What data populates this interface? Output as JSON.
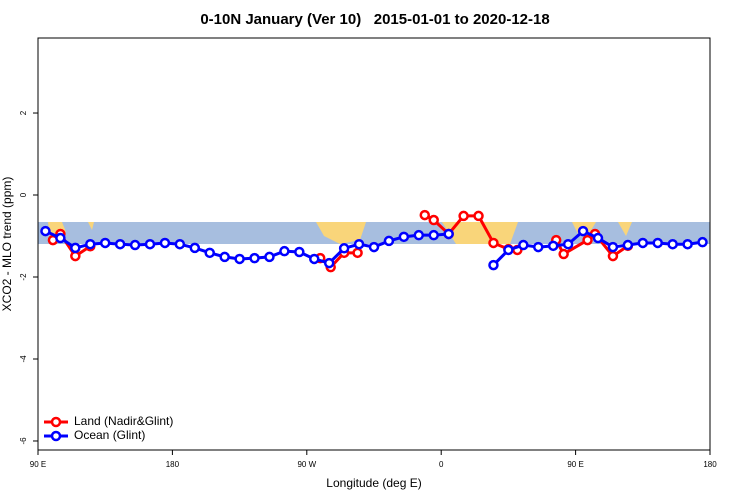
{
  "chart_data": {
    "type": "line",
    "title": "0-10N January (Ver 10)   2015-01-01 to 2020-12-18",
    "x_label": "Longitude (deg E)",
    "y_label": "XCO2 - MLO trend (ppm)",
    "xlim": [
      90,
      540
    ],
    "ylim": [
      -6.22,
      3.83
    ],
    "xticks": [
      {
        "value": 90,
        "label": "90 E"
      },
      {
        "value": 180,
        "label": "180"
      },
      {
        "value": 270,
        "label": "90 W"
      },
      {
        "value": 360,
        "label": "0"
      },
      {
        "value": 450,
        "label": "90 E"
      },
      {
        "value": 540,
        "label": "180"
      }
    ],
    "yticks": [
      2,
      0,
      -2,
      -4,
      -6
    ],
    "legend": "bottom-left",
    "series": [
      {
        "name": "Land (Nadir&Glint)",
        "color": "#ff0000",
        "x": [
          100,
          105,
          115,
          125,
          null,
          279,
          286,
          295,
          304,
          null,
          349,
          355,
          365,
          375,
          385,
          395,
          405,
          411,
          null,
          437,
          442,
          458,
          463,
          475,
          485
        ],
        "values": [
          -1.1,
          -0.95,
          -1.49,
          -1.25,
          null,
          -1.54,
          -1.76,
          -1.41,
          -1.41,
          null,
          -0.49,
          -0.61,
          -0.95,
          -0.51,
          -0.51,
          -1.17,
          -1.32,
          -1.34,
          null,
          -1.1,
          -1.44,
          -1.1,
          -0.95,
          -1.49,
          -1.24
        ]
      },
      {
        "name": "Ocean (Glint)",
        "color": "#0000ff",
        "x": [
          95,
          105,
          115,
          125,
          135,
          145,
          155,
          165,
          175,
          185,
          195,
          205,
          215,
          225,
          235,
          245,
          255,
          265,
          275,
          285,
          295,
          305,
          315,
          325,
          335,
          345,
          355,
          365,
          375,
          385,
          395,
          405,
          415,
          425,
          435,
          445,
          455,
          465,
          475,
          485,
          495,
          505,
          515,
          525,
          535
        ],
        "values": [
          -0.88,
          -1.05,
          -1.29,
          -1.2,
          -1.17,
          -1.2,
          -1.22,
          -1.2,
          -1.17,
          -1.2,
          -1.29,
          -1.41,
          -1.51,
          -1.56,
          -1.54,
          -1.51,
          -1.37,
          -1.39,
          -1.56,
          -1.66,
          -1.3,
          -1.2,
          -1.27,
          -1.12,
          -1.02,
          -0.98,
          -0.98,
          -0.95,
          null,
          null,
          -1.71,
          -1.34,
          -1.22,
          -1.27,
          -1.24,
          -1.2,
          -0.88,
          -1.05,
          -1.27,
          -1.22,
          -1.17,
          -1.17,
          -1.2,
          -1.2,
          -1.15
        ]
      }
    ]
  }
}
